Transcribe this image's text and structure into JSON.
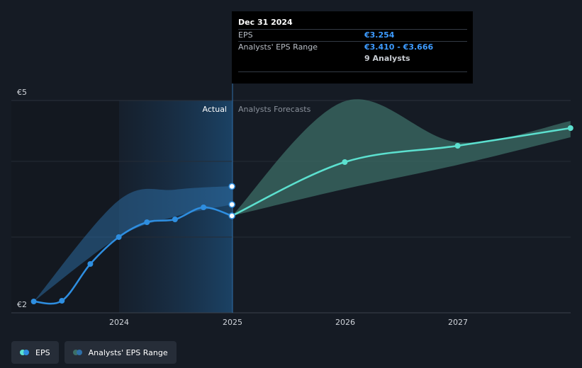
{
  "tooltip": {
    "date": "Dec 31 2024",
    "eps_label": "EPS",
    "eps_value": "€3.254",
    "range_label": "Analysts' EPS Range",
    "range_value": "€3.410 - €3.666",
    "analysts": "9 Analysts"
  },
  "labels": {
    "actual": "Actual",
    "forecast": "Analysts Forecasts"
  },
  "legend": {
    "eps": "EPS",
    "range": "Analysts' EPS Range"
  },
  "colors": {
    "eps_actual": "#2e8ee0",
    "eps_forecast": "#5ce0cf",
    "range_actual": "#2e6fa8",
    "range_forecast": "#3c6e66"
  },
  "chart_data": {
    "type": "line",
    "y_tick_labels": [
      "€5",
      "€2"
    ],
    "x_tick_labels": [
      "2024",
      "2025",
      "2026",
      "2027"
    ],
    "ylim": [
      2,
      5
    ],
    "grid": true,
    "legend_position": "bottom-left",
    "series": [
      {
        "name": "EPS",
        "segment": "actual",
        "points": [
          {
            "x": "2023-03-31",
            "y": 2.04
          },
          {
            "x": "2023-06-30",
            "y": 2.05
          },
          {
            "x": "2023-09-30",
            "y": 2.57
          },
          {
            "x": "2023-12-31",
            "y": 2.95
          },
          {
            "x": "2024-03-31",
            "y": 3.16
          },
          {
            "x": "2024-06-30",
            "y": 3.2
          },
          {
            "x": "2024-09-30",
            "y": 3.37
          },
          {
            "x": "2024-12-31",
            "y": 3.25
          }
        ]
      },
      {
        "name": "EPS",
        "segment": "forecast",
        "points": [
          {
            "x": "2024-12-31",
            "y": 3.25
          },
          {
            "x": "2025-12-31",
            "y": 4.01
          },
          {
            "x": "2026-12-31",
            "y": 4.24
          },
          {
            "x": "2027-12-31",
            "y": 4.49
          }
        ]
      },
      {
        "name": "Analysts' EPS Range",
        "segment": "actual",
        "points": [
          {
            "x": "2023-03-31",
            "low": 2.04,
            "high": 2.04
          },
          {
            "x": "2023-12-31",
            "low": 2.95,
            "high": 3.47
          },
          {
            "x": "2024-06-30",
            "low": 3.24,
            "high": 3.62
          },
          {
            "x": "2024-12-31",
            "low": 3.41,
            "high": 3.67
          }
        ]
      },
      {
        "name": "Analysts' EPS Range",
        "segment": "forecast",
        "points": [
          {
            "x": "2024-12-31",
            "low": 3.25,
            "high": 3.25
          },
          {
            "x": "2025-12-31",
            "low": 3.63,
            "high": 4.87
          },
          {
            "x": "2026-12-31",
            "low": 3.97,
            "high": 4.29
          },
          {
            "x": "2027-12-31",
            "low": 4.36,
            "high": 4.59
          }
        ]
      }
    ],
    "markers": [
      {
        "x": "2024-12-31",
        "y": 3.666
      },
      {
        "x": "2024-12-31",
        "y": 3.41
      }
    ]
  }
}
